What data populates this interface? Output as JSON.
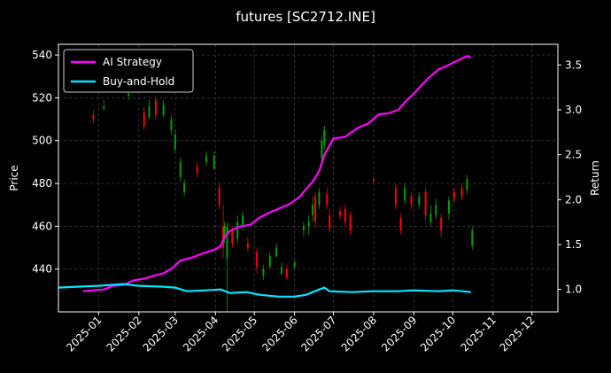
{
  "chart_data": {
    "type": "line",
    "title": "futures [SC2712.INE]",
    "ylabel_left": "Price",
    "ylabel_right": "Return",
    "x_ticks": [
      "2025-01",
      "2025-02",
      "2025-03",
      "2025-04",
      "2025-05",
      "2025-06",
      "2025-07",
      "2025-08",
      "2025-09",
      "2025-10",
      "2025-11",
      "2025-12"
    ],
    "x_range": [
      "2024-12-01",
      "2025-12-21"
    ],
    "y_left_ticks": [
      440,
      460,
      480,
      500,
      520,
      540
    ],
    "y_left_range": [
      420,
      545
    ],
    "y_right_ticks": [
      "1.0",
      "1.5",
      "2.0",
      "2.5",
      "3.0",
      "3.5"
    ],
    "y_right_range": [
      0.75,
      3.73
    ],
    "grid": true,
    "legend_position": "top-left",
    "colors": {
      "background": "#000000",
      "ai_strategy": "#ff00ff",
      "buy_and_hold": "#00e5ff",
      "candle_up": "#00a000",
      "candle_down": "#ff0000"
    },
    "series": [
      {
        "name": "AI Strategy",
        "points": [
          [
            "2024-12-20",
            0.98
          ],
          [
            "2024-12-28",
            0.99
          ],
          [
            "2025-01-05",
            1.0
          ],
          [
            "2025-01-12",
            1.04
          ],
          [
            "2025-01-20",
            1.05
          ],
          [
            "2025-01-28",
            1.1
          ],
          [
            "2025-02-05",
            1.12
          ],
          [
            "2025-02-12",
            1.15
          ],
          [
            "2025-02-20",
            1.18
          ],
          [
            "2025-02-27",
            1.24
          ],
          [
            "2025-03-05",
            1.32
          ],
          [
            "2025-03-15",
            1.36
          ],
          [
            "2025-03-22",
            1.4
          ],
          [
            "2025-03-31",
            1.44
          ],
          [
            "2025-04-05",
            1.48
          ],
          [
            "2025-04-08",
            1.58
          ],
          [
            "2025-04-12",
            1.65
          ],
          [
            "2025-04-20",
            1.7
          ],
          [
            "2025-04-28",
            1.72
          ],
          [
            "2025-05-05",
            1.8
          ],
          [
            "2025-05-12",
            1.85
          ],
          [
            "2025-05-20",
            1.9
          ],
          [
            "2025-05-28",
            1.95
          ],
          [
            "2025-06-05",
            2.03
          ],
          [
            "2025-06-10",
            2.12
          ],
          [
            "2025-06-15",
            2.2
          ],
          [
            "2025-06-20",
            2.32
          ],
          [
            "2025-06-24",
            2.5
          ],
          [
            "2025-07-01",
            2.68
          ],
          [
            "2025-07-10",
            2.7
          ],
          [
            "2025-07-20",
            2.8
          ],
          [
            "2025-07-28",
            2.85
          ],
          [
            "2025-08-05",
            2.95
          ],
          [
            "2025-08-12",
            2.96
          ],
          [
            "2025-08-20",
            3.0
          ],
          [
            "2025-08-26",
            3.1
          ],
          [
            "2025-09-01",
            3.18
          ],
          [
            "2025-09-06",
            3.26
          ],
          [
            "2025-09-12",
            3.35
          ],
          [
            "2025-09-20",
            3.45
          ],
          [
            "2025-09-28",
            3.5
          ],
          [
            "2025-10-05",
            3.55
          ],
          [
            "2025-10-12",
            3.6
          ],
          [
            "2025-10-15",
            3.58
          ]
        ]
      },
      {
        "name": "Buy-and-Hold",
        "points": [
          [
            "2024-12-01",
            1.02
          ],
          [
            "2024-12-15",
            1.03
          ],
          [
            "2025-01-01",
            1.04
          ],
          [
            "2025-01-20",
            1.06
          ],
          [
            "2025-02-01",
            1.04
          ],
          [
            "2025-02-20",
            1.03
          ],
          [
            "2025-03-01",
            1.02
          ],
          [
            "2025-03-10",
            0.98
          ],
          [
            "2025-03-25",
            0.99
          ],
          [
            "2025-04-05",
            1.0
          ],
          [
            "2025-04-12",
            0.96
          ],
          [
            "2025-04-25",
            0.97
          ],
          [
            "2025-05-05",
            0.94
          ],
          [
            "2025-05-20",
            0.92
          ],
          [
            "2025-06-01",
            0.92
          ],
          [
            "2025-06-10",
            0.94
          ],
          [
            "2025-06-20",
            1.0
          ],
          [
            "2025-06-24",
            1.02
          ],
          [
            "2025-06-28",
            0.98
          ],
          [
            "2025-07-15",
            0.97
          ],
          [
            "2025-08-01",
            0.98
          ],
          [
            "2025-08-20",
            0.98
          ],
          [
            "2025-09-01",
            0.99
          ],
          [
            "2025-09-20",
            0.98
          ],
          [
            "2025-10-01",
            0.99
          ],
          [
            "2025-10-15",
            0.97
          ]
        ]
      }
    ],
    "candles": [
      [
        "2024-12-28",
        512,
        510,
        514,
        508
      ],
      [
        "2025-01-05",
        515,
        516,
        519,
        514
      ],
      [
        "2025-01-24",
        521,
        522,
        524,
        519
      ],
      [
        "2025-02-05",
        513,
        507,
        516,
        505
      ],
      [
        "2025-02-09",
        511,
        516,
        519,
        510
      ],
      [
        "2025-02-14",
        519,
        512,
        520,
        510
      ],
      [
        "2025-02-20",
        512,
        517,
        519,
        511
      ],
      [
        "2025-02-26",
        505,
        510,
        512,
        503
      ],
      [
        "2025-03-01",
        496,
        503,
        505,
        494
      ],
      [
        "2025-03-05",
        483,
        490,
        492,
        481
      ],
      [
        "2025-03-08",
        476,
        480,
        482,
        474
      ],
      [
        "2025-03-18",
        488,
        485,
        490,
        483
      ],
      [
        "2025-03-25",
        490,
        493,
        495,
        488
      ],
      [
        "2025-03-31",
        487,
        493,
        495,
        486
      ],
      [
        "2025-04-04",
        478,
        470,
        480,
        468
      ],
      [
        "2025-04-07",
        460,
        450,
        470,
        445
      ],
      [
        "2025-04-08",
        455,
        460,
        462,
        452
      ],
      [
        "2025-04-10",
        445,
        460,
        462,
        420
      ],
      [
        "2025-04-14",
        458,
        452,
        460,
        450
      ],
      [
        "2025-04-18",
        454,
        462,
        465,
        452
      ],
      [
        "2025-04-22",
        460,
        465,
        467,
        458
      ],
      [
        "2025-04-26",
        452,
        450,
        455,
        448
      ],
      [
        "2025-05-03",
        448,
        441,
        450,
        438
      ],
      [
        "2025-05-08",
        437,
        440,
        442,
        435
      ],
      [
        "2025-05-13",
        441,
        446,
        448,
        440
      ],
      [
        "2025-05-18",
        446,
        450,
        452,
        445
      ],
      [
        "2025-05-22",
        438,
        441,
        443,
        437
      ],
      [
        "2025-05-26",
        440,
        436,
        442,
        435
      ],
      [
        "2025-06-01",
        441,
        443,
        444,
        440
      ],
      [
        "2025-06-08",
        458,
        460,
        462,
        455
      ],
      [
        "2025-06-12",
        460,
        462,
        465,
        456
      ],
      [
        "2025-06-15",
        465,
        470,
        474,
        462
      ],
      [
        "2025-06-17",
        474,
        462,
        476,
        460
      ],
      [
        "2025-06-20",
        470,
        476,
        478,
        468
      ],
      [
        "2025-06-22",
        492,
        500,
        502,
        488
      ],
      [
        "2025-06-24",
        498,
        505,
        507,
        496
      ],
      [
        "2025-06-26",
        475,
        470,
        478,
        468
      ],
      [
        "2025-06-28",
        465,
        459,
        468,
        457
      ],
      [
        "2025-07-06",
        467,
        465,
        469,
        463
      ],
      [
        "2025-07-10",
        468,
        462,
        470,
        460
      ],
      [
        "2025-07-14",
        465,
        458,
        467,
        456
      ],
      [
        "2025-08-01",
        482,
        481,
        483,
        480
      ],
      [
        "2025-08-18",
        478,
        470,
        480,
        468
      ],
      [
        "2025-08-22",
        464,
        458,
        466,
        456
      ],
      [
        "2025-08-25",
        472,
        478,
        480,
        470
      ],
      [
        "2025-08-30",
        474,
        470,
        476,
        468
      ],
      [
        "2025-09-05",
        470,
        474,
        476,
        468
      ],
      [
        "2025-09-10",
        476,
        465,
        478,
        463
      ],
      [
        "2025-09-14",
        462,
        466,
        470,
        460
      ],
      [
        "2025-09-18",
        465,
        470,
        473,
        463
      ],
      [
        "2025-09-22",
        464,
        458,
        466,
        455
      ],
      [
        "2025-09-28",
        466,
        472,
        474,
        463
      ],
      [
        "2025-10-02",
        476,
        473,
        478,
        471
      ],
      [
        "2025-10-08",
        478,
        474,
        480,
        472
      ],
      [
        "2025-10-12",
        477,
        482,
        484,
        475
      ],
      [
        "2025-10-16",
        451,
        458,
        460,
        449
      ]
    ]
  }
}
